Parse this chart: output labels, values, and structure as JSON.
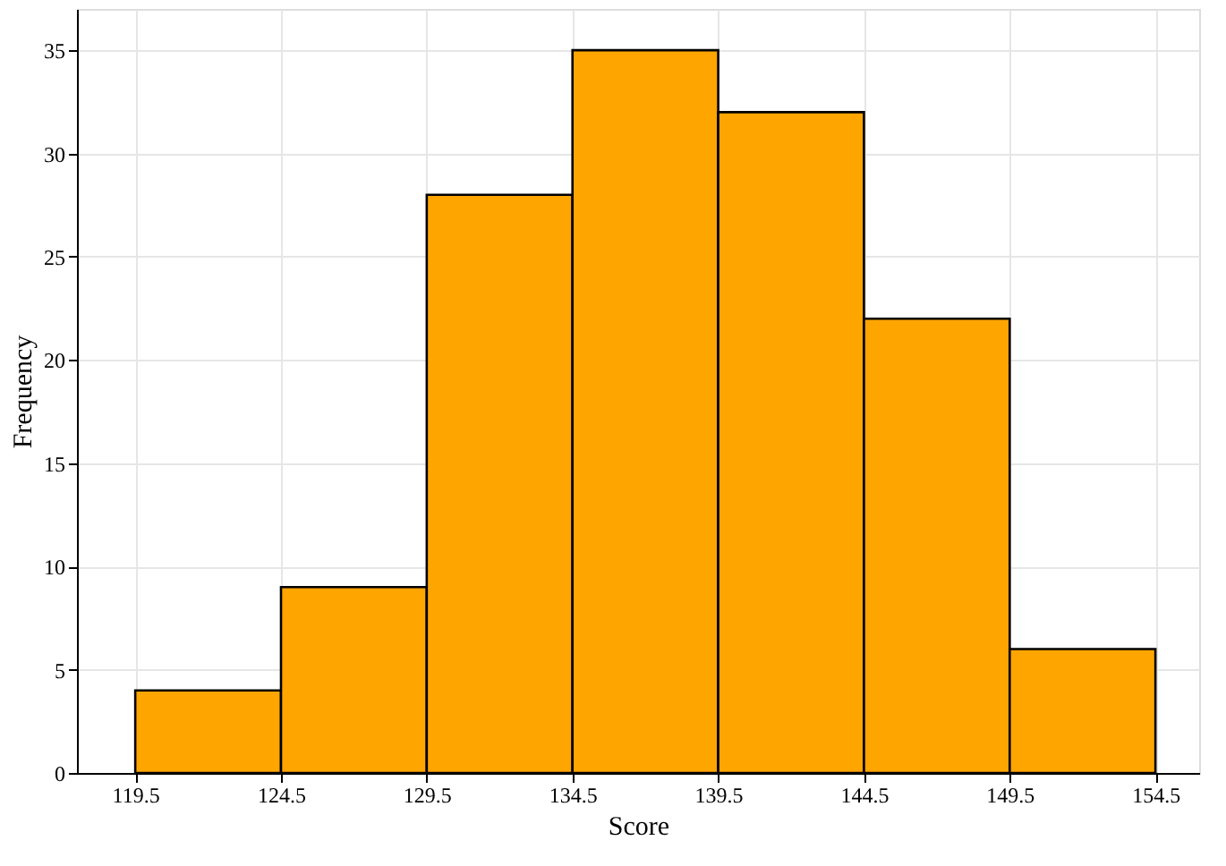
{
  "chart_data": {
    "type": "histogram",
    "xlabel": "Score",
    "ylabel": "Frequency",
    "bins": [
      119.5,
      124.5,
      129.5,
      134.5,
      139.5,
      144.5,
      149.5,
      154.5
    ],
    "values": [
      4,
      9,
      28,
      35,
      32,
      22,
      6
    ],
    "color": "#ffa500",
    "xlim": [
      117.5,
      156
    ],
    "xticks": [
      119.5,
      124.5,
      129.5,
      134.5,
      139.5,
      144.5,
      149.5,
      154.5
    ],
    "ylim": [
      0,
      37
    ],
    "yticks": [
      0,
      5,
      10,
      15,
      20,
      25,
      30,
      35
    ],
    "grid": true
  }
}
